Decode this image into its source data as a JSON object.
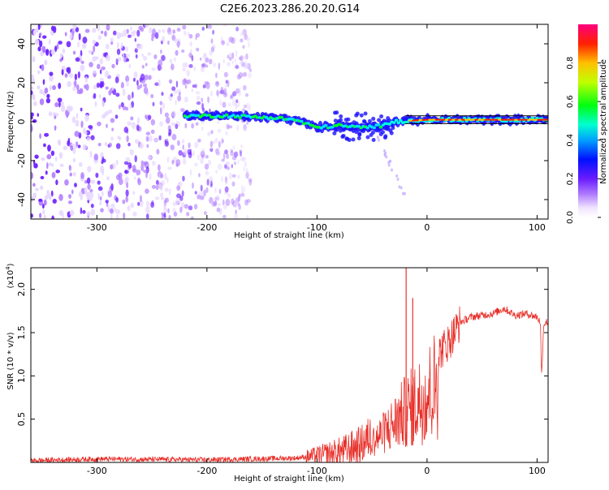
{
  "title": "C2E6.2023.286.20.20.G14",
  "chart_data": [
    {
      "type": "heatmap",
      "xlabel": "Height of straight line (km)",
      "ylabel": "Frequency (Hz)",
      "xlim": [
        -360,
        110
      ],
      "ylim": [
        -50,
        50
      ],
      "x_ticks": [
        -300,
        -200,
        -100,
        0,
        100
      ],
      "y_ticks": [
        -40,
        -20,
        0,
        20,
        40
      ],
      "colorbar": {
        "label": "Normalized spectral amplitude",
        "range": [
          0.0,
          1.0
        ],
        "ticks": [
          "0.0",
          "0.2",
          "0.4",
          "0.6",
          "0.8"
        ]
      },
      "features": {
        "noise_region_x": [
          -360,
          -160
        ],
        "signal_trace": [
          {
            "x": -220,
            "y": 3
          },
          {
            "x": -180,
            "y": 3
          },
          {
            "x": -140,
            "y": 2
          },
          {
            "x": -120,
            "y": 1
          },
          {
            "x": -100,
            "y": -3
          },
          {
            "x": -80,
            "y": -2
          },
          {
            "x": -60,
            "y": -3
          },
          {
            "x": -40,
            "y": -2
          },
          {
            "x": -30,
            "y": 0
          },
          {
            "x": 0,
            "y": 1
          },
          {
            "x": 50,
            "y": 1
          },
          {
            "x": 110,
            "y": 1
          }
        ]
      }
    },
    {
      "type": "line",
      "xlabel": "Height of straight line (km)",
      "ylabel": "SNR (10 * v/v)",
      "y_scale_label": "(x10",
      "y_scale_exp": "4",
      "xlim": [
        -360,
        110
      ],
      "ylim": [
        0,
        2.25
      ],
      "x_ticks": [
        -300,
        -200,
        -100,
        0,
        100
      ],
      "y_ticks": [
        "0.5",
        "1.0",
        "1.5",
        "2.0"
      ],
      "line_color": "#e8302a",
      "series": [
        {
          "x": [
            -360,
            -300,
            -200,
            -120,
            -100,
            -80,
            -60,
            -50,
            -40,
            -30,
            -20,
            -10,
            0,
            10,
            20,
            30,
            40,
            50,
            60,
            70,
            80,
            90,
            100,
            103,
            104,
            106,
            110
          ],
          "values": [
            0.02,
            0.04,
            0.03,
            0.05,
            0.08,
            0.12,
            0.2,
            0.32,
            0.45,
            0.6,
            0.78,
            0.9,
            1.05,
            1.25,
            1.4,
            1.62,
            1.68,
            1.7,
            1.72,
            1.78,
            1.7,
            1.72,
            1.68,
            1.62,
            0.98,
            1.6,
            1.63
          ]
        }
      ],
      "annotations": [
        {
          "x": -19,
          "value": 2.25
        },
        {
          "x": -13,
          "value": 1.9
        }
      ]
    }
  ]
}
